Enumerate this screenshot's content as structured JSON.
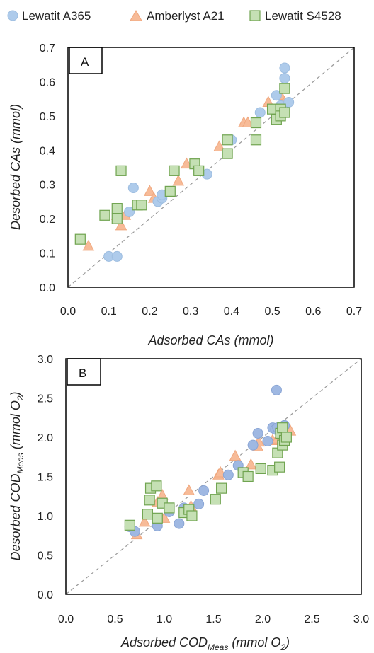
{
  "legend": [
    {
      "name": "Lewatit A365",
      "marker": "circle-icon"
    },
    {
      "name": "Amberlyst A21",
      "marker": "triangle-icon"
    },
    {
      "name": "Lewatit S4528",
      "marker": "square-icon"
    }
  ],
  "colors": {
    "panelA": {
      "circle": "#aecbeb",
      "circle_stroke": "#9dbde0",
      "triangle": "#f7bb98",
      "triangle_stroke": "#f0a87f",
      "square": "#c5e0b4",
      "square_stroke": "#70a450"
    },
    "panelB": {
      "circle": "#9fb8e2",
      "circle_stroke": "#8aa5d5",
      "triangle": "#f7bb98",
      "triangle_stroke": "#f0a87f",
      "square": "#c5e0b4",
      "square_stroke": "#70a450"
    }
  },
  "chart_data": [
    {
      "type": "scatter",
      "panel_label": "A",
      "title": "",
      "xlabel": "Adsorbed CAs (mmol)",
      "ylabel": "Desorbed CAs (mmol)",
      "xlim": [
        0,
        0.7
      ],
      "ylim": [
        0,
        0.7
      ],
      "xticks": [
        "0.0",
        "0.1",
        "0.2",
        "0.3",
        "0.4",
        "0.5",
        "0.6",
        "0.7"
      ],
      "yticks": [
        "0.0",
        "0.1",
        "0.2",
        "0.3",
        "0.4",
        "0.5",
        "0.6",
        "0.7"
      ],
      "reference_line": "y = x (dashed)",
      "grid": false,
      "series": [
        {
          "name": "Lewatit A365",
          "points": [
            [
              0.1,
              0.09
            ],
            [
              0.12,
              0.09
            ],
            [
              0.15,
              0.22
            ],
            [
              0.16,
              0.29
            ],
            [
              0.22,
              0.25
            ],
            [
              0.23,
              0.26
            ],
            [
              0.23,
              0.27
            ],
            [
              0.32,
              0.34
            ],
            [
              0.34,
              0.33
            ],
            [
              0.4,
              0.43
            ],
            [
              0.47,
              0.51
            ],
            [
              0.51,
              0.56
            ],
            [
              0.52,
              0.53
            ],
            [
              0.53,
              0.64
            ],
            [
              0.53,
              0.61
            ],
            [
              0.53,
              0.58
            ],
            [
              0.54,
              0.54
            ]
          ]
        },
        {
          "name": "Amberlyst A21",
          "points": [
            [
              0.05,
              0.12
            ],
            [
              0.12,
              0.21
            ],
            [
              0.13,
              0.18
            ],
            [
              0.14,
              0.21
            ],
            [
              0.2,
              0.28
            ],
            [
              0.21,
              0.26
            ],
            [
              0.27,
              0.31
            ],
            [
              0.29,
              0.36
            ],
            [
              0.37,
              0.41
            ],
            [
              0.43,
              0.48
            ],
            [
              0.44,
              0.48
            ],
            [
              0.49,
              0.54
            ],
            [
              0.52,
              0.52
            ],
            [
              0.52,
              0.56
            ],
            [
              0.53,
              0.54
            ]
          ]
        },
        {
          "name": "Lewatit S4528",
          "points": [
            [
              0.03,
              0.14
            ],
            [
              0.09,
              0.21
            ],
            [
              0.12,
              0.2
            ],
            [
              0.12,
              0.23
            ],
            [
              0.13,
              0.34
            ],
            [
              0.17,
              0.24
            ],
            [
              0.18,
              0.24
            ],
            [
              0.25,
              0.28
            ],
            [
              0.26,
              0.34
            ],
            [
              0.31,
              0.36
            ],
            [
              0.32,
              0.34
            ],
            [
              0.39,
              0.43
            ],
            [
              0.39,
              0.39
            ],
            [
              0.46,
              0.43
            ],
            [
              0.46,
              0.48
            ],
            [
              0.5,
              0.52
            ],
            [
              0.51,
              0.49
            ],
            [
              0.52,
              0.52
            ],
            [
              0.52,
              0.5
            ],
            [
              0.53,
              0.51
            ],
            [
              0.53,
              0.58
            ]
          ]
        }
      ]
    },
    {
      "type": "scatter",
      "panel_label": "B",
      "title": "",
      "xlabel": "Adsorbed COD",
      "xlabel_sub": "Meas",
      "xlabel_tail": " (mmol O",
      "xlabel_sub2": "2",
      "xlabel_end": ")",
      "ylabel": "Desorbed  COD",
      "ylabel_sub": "Meas",
      "ylabel_tail": " (mmol O",
      "ylabel_sub2": "2",
      "ylabel_end": ")",
      "xlim": [
        0,
        3.0
      ],
      "ylim": [
        0,
        3.0
      ],
      "xticks": [
        "0.0",
        "0.5",
        "1.0",
        "1.5",
        "2.0",
        "2.5",
        "3.0"
      ],
      "yticks": [
        "0.0",
        "0.5",
        "1.0",
        "1.5",
        "2.0",
        "2.5",
        "3.0"
      ],
      "reference_line": "y = x (dashed)",
      "grid": false,
      "series": [
        {
          "name": "Lewatit A365",
          "points": [
            [
              0.65,
              0.86
            ],
            [
              0.7,
              0.8
            ],
            [
              0.93,
              0.87
            ],
            [
              1.05,
              1.05
            ],
            [
              1.15,
              0.9
            ],
            [
              1.2,
              1.1
            ],
            [
              1.35,
              1.15
            ],
            [
              1.4,
              1.32
            ],
            [
              1.65,
              1.52
            ],
            [
              1.75,
              1.64
            ],
            [
              1.9,
              1.9
            ],
            [
              1.95,
              2.05
            ],
            [
              2.05,
              1.95
            ],
            [
              2.1,
              2.12
            ],
            [
              2.13,
              2.1
            ],
            [
              2.14,
              2.6
            ],
            [
              2.15,
              2.12
            ],
            [
              2.2,
              2.05
            ],
            [
              2.22,
              2.15
            ]
          ]
        },
        {
          "name": "Amberlyst A21",
          "points": [
            [
              0.72,
              0.76
            ],
            [
              0.8,
              0.92
            ],
            [
              0.93,
              1.17
            ],
            [
              0.98,
              1.26
            ],
            [
              1.0,
              0.97
            ],
            [
              1.25,
              1.32
            ],
            [
              1.27,
              1.12
            ],
            [
              1.55,
              1.52
            ],
            [
              1.57,
              1.55
            ],
            [
              1.72,
              1.76
            ],
            [
              1.88,
              1.65
            ],
            [
              1.95,
              1.88
            ],
            [
              1.96,
              1.94
            ],
            [
              2.1,
              1.96
            ],
            [
              2.15,
              1.98
            ],
            [
              2.22,
              1.97
            ],
            [
              2.28,
              2.08
            ]
          ]
        },
        {
          "name": "Lewatit S4528",
          "points": [
            [
              0.65,
              0.88
            ],
            [
              0.83,
              1.02
            ],
            [
              0.85,
              1.2
            ],
            [
              0.86,
              1.35
            ],
            [
              0.92,
              1.38
            ],
            [
              0.93,
              0.97
            ],
            [
              0.98,
              1.16
            ],
            [
              1.05,
              1.1
            ],
            [
              1.2,
              1.04
            ],
            [
              1.25,
              1.08
            ],
            [
              1.28,
              1.0
            ],
            [
              1.52,
              1.21
            ],
            [
              1.58,
              1.35
            ],
            [
              1.8,
              1.55
            ],
            [
              1.85,
              1.5
            ],
            [
              1.98,
              1.6
            ],
            [
              2.1,
              1.58
            ],
            [
              2.15,
              1.8
            ],
            [
              2.17,
              1.62
            ],
            [
              2.18,
              2.05
            ],
            [
              2.2,
              1.9
            ],
            [
              2.2,
              2.12
            ],
            [
              2.22,
              1.96
            ],
            [
              2.24,
              2.0
            ]
          ]
        }
      ]
    }
  ]
}
